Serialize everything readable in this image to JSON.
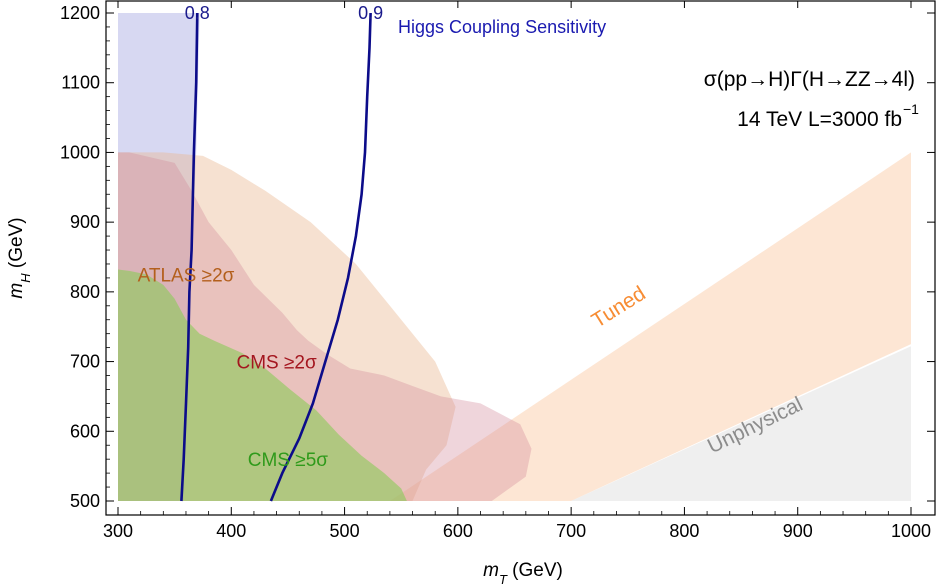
{
  "chart_data": {
    "type": "area",
    "title": "",
    "xlabel_main": "m",
    "xlabel_sub": "T",
    "xlabel_unit": " (GeV)",
    "ylabel_main": "m",
    "ylabel_sub": "H",
    "ylabel_unit": " (GeV)",
    "xlim": [
      300,
      1000
    ],
    "ylim": [
      500,
      1200
    ],
    "x_ticks": [
      300,
      400,
      500,
      600,
      700,
      800,
      900,
      1000
    ],
    "y_ticks": [
      500,
      600,
      700,
      800,
      900,
      1000,
      1100,
      1200
    ],
    "grid": false,
    "legend": "none",
    "annotations": {
      "line1": "σ(pp→H)Γ(H→ZZ→4l)",
      "line2_text": "14 TeV L=3000 fb",
      "line2_sup": "−1",
      "coupling_title": "Higgs Coupling Sensitivity"
    },
    "regions": [
      {
        "label": "",
        "color": "#c6c8ec",
        "opacity": 0.7,
        "points": [
          [
            300,
            500
          ],
          [
            358,
            500
          ],
          [
            362,
            700
          ],
          [
            365,
            850
          ],
          [
            369,
            1000
          ],
          [
            372,
            1200
          ],
          [
            300,
            1200
          ]
        ]
      },
      {
        "label": "Tuned",
        "color": "#f9b27a",
        "opacity": 0.32,
        "label_pos": [
          745,
          770
        ],
        "label_rotation": -32,
        "points": [
          [
            540,
            500
          ],
          [
            700,
            500
          ],
          [
            1000,
            725
          ],
          [
            1000,
            1000
          ]
        ]
      },
      {
        "label": "Unphysical",
        "color": "#e2e2e2",
        "opacity": 0.55,
        "label_pos": [
          865,
          600
        ],
        "label_rotation": -26,
        "points": [
          [
            700,
            500
          ],
          [
            1000,
            500
          ],
          [
            1000,
            722
          ]
        ]
      },
      {
        "label": "ATLAS ≥2σ",
        "color": "#e9b892",
        "opacity": 0.42,
        "label_pos": [
          360,
          815
        ],
        "points": [
          [
            300,
            500
          ],
          [
            560,
            500
          ],
          [
            572,
            545
          ],
          [
            590,
            580
          ],
          [
            598,
            635
          ],
          [
            580,
            700
          ],
          [
            540,
            780
          ],
          [
            510,
            840
          ],
          [
            470,
            900
          ],
          [
            430,
            945
          ],
          [
            400,
            975
          ],
          [
            375,
            995
          ],
          [
            340,
            1000
          ],
          [
            300,
            1000
          ]
        ]
      },
      {
        "label": "CMS ≥2σ",
        "color": "#d48a9a",
        "opacity": 0.36,
        "label_pos": [
          440,
          690
        ],
        "points": [
          [
            300,
            500
          ],
          [
            630,
            500
          ],
          [
            660,
            535
          ],
          [
            665,
            575
          ],
          [
            655,
            610
          ],
          [
            620,
            640
          ],
          [
            585,
            650
          ],
          [
            560,
            665
          ],
          [
            535,
            680
          ],
          [
            505,
            690
          ],
          [
            485,
            710
          ],
          [
            468,
            730
          ],
          [
            458,
            745
          ],
          [
            445,
            770
          ],
          [
            420,
            810
          ],
          [
            400,
            860
          ],
          [
            380,
            900
          ],
          [
            365,
            945
          ],
          [
            350,
            985
          ],
          [
            310,
            1000
          ],
          [
            300,
            1000
          ]
        ]
      },
      {
        "label": "CMS ≥5σ",
        "color": "#8cc95a",
        "opacity": 0.62,
        "label_pos": [
          450,
          550
        ],
        "points": [
          [
            300,
            500
          ],
          [
            555,
            500
          ],
          [
            550,
            518
          ],
          [
            535,
            540
          ],
          [
            515,
            565
          ],
          [
            495,
            595
          ],
          [
            475,
            630
          ],
          [
            452,
            660
          ],
          [
            430,
            690
          ],
          [
            410,
            712
          ],
          [
            385,
            730
          ],
          [
            372,
            740
          ],
          [
            360,
            760
          ],
          [
            350,
            790
          ],
          [
            340,
            810
          ],
          [
            325,
            825
          ],
          [
            310,
            830
          ],
          [
            300,
            832
          ]
        ]
      }
    ],
    "series": [
      {
        "name": "0.8",
        "color": "#0c0c8a",
        "points": [
          [
            356,
            500
          ],
          [
            358,
            560
          ],
          [
            360,
            640
          ],
          [
            362,
            720
          ],
          [
            363,
            800
          ],
          [
            365,
            860
          ],
          [
            367,
            1000
          ],
          [
            369,
            1100
          ],
          [
            370,
            1200
          ]
        ]
      },
      {
        "name": "0.9",
        "color": "#0c0c8a",
        "points": [
          [
            435,
            500
          ],
          [
            445,
            540
          ],
          [
            460,
            590
          ],
          [
            472,
            640
          ],
          [
            483,
            700
          ],
          [
            494,
            760
          ],
          [
            503,
            820
          ],
          [
            510,
            880
          ],
          [
            515,
            940
          ],
          [
            518,
            1000
          ],
          [
            520,
            1080
          ],
          [
            522,
            1150
          ],
          [
            523,
            1200
          ]
        ]
      }
    ]
  }
}
